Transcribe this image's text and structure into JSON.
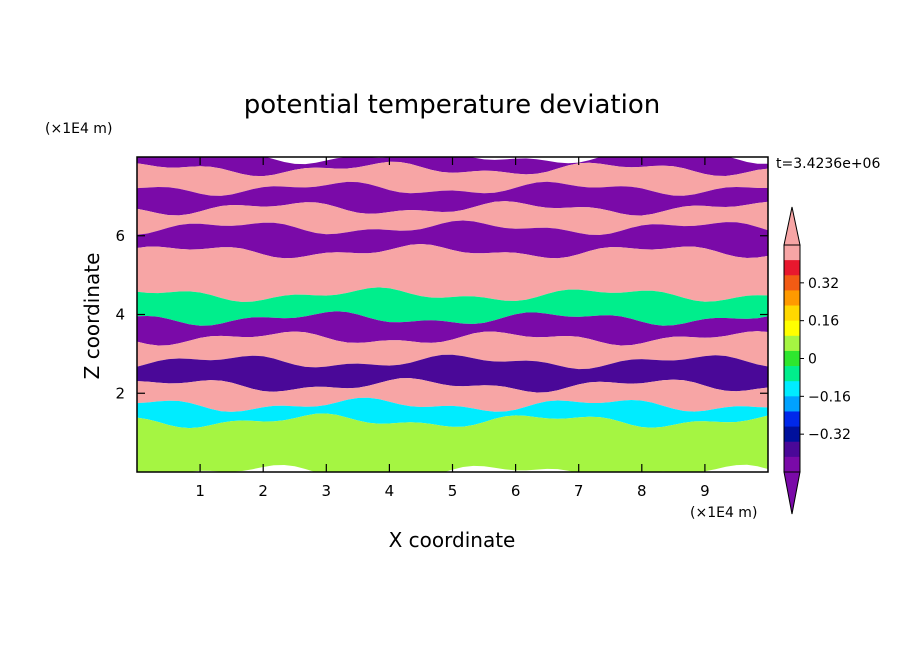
{
  "chart_data": {
    "type": "heatmap",
    "title": "potential temperature deviation",
    "xlabel": "X coordinate",
    "ylabel": "Z coordinate",
    "x_unit": "(×1E4 m)",
    "y_unit": "(×1E4 m)",
    "timestamp": "t=3.4236e+06",
    "xlim": [
      0,
      10
    ],
    "ylim": [
      0,
      8
    ],
    "x_ticks": [
      1,
      2,
      3,
      4,
      5,
      6,
      7,
      8,
      9
    ],
    "y_ticks": [
      2,
      4,
      6
    ],
    "colorbar": {
      "levels": [
        -0.48,
        -0.4,
        -0.32,
        -0.24,
        -0.16,
        -0.08,
        0,
        0.08,
        0.16,
        0.24,
        0.32,
        0.4,
        0.48
      ],
      "tick_labels": [
        "0.32",
        "0.16",
        "0",
        "−0.16",
        "−0.32"
      ],
      "tick_values": [
        0.32,
        0.16,
        0,
        -0.16,
        -0.32
      ],
      "colors_top_to_bottom": [
        "#f7a5a5",
        "#e8182e",
        "#f25b14",
        "#ff9a00",
        "#ffd800",
        "#ffff00",
        "#a5f542",
        "#2ee62e",
        "#00ee8c",
        "#00ecff",
        "#00a2ff",
        "#0028ea",
        "#00109c",
        "#4a0898",
        "#7a0aa8"
      ],
      "over_color": "#f7a5a5",
      "under_color": "#7a0aa8"
    },
    "field_bands": [
      {
        "z_from": 7.7,
        "z_to": 8.0,
        "color": "#7a0aa8"
      },
      {
        "z_from": 7.2,
        "z_to": 7.7,
        "color": "#f7a5a5"
      },
      {
        "z_from": 6.7,
        "z_to": 7.2,
        "color": "#7a0aa8"
      },
      {
        "z_from": 6.2,
        "z_to": 6.7,
        "color": "#f7a5a5"
      },
      {
        "z_from": 5.6,
        "z_to": 6.2,
        "color": "#7a0aa8"
      },
      {
        "z_from": 4.5,
        "z_to": 5.6,
        "color": "#f7a5a5"
      },
      {
        "z_from": 3.9,
        "z_to": 4.5,
        "color": "#00ee8c"
      },
      {
        "z_from": 3.4,
        "z_to": 3.9,
        "color": "#7a0aa8"
      },
      {
        "z_from": 2.8,
        "z_to": 3.4,
        "color": "#f7a5a5"
      },
      {
        "z_from": 2.2,
        "z_to": 2.8,
        "color": "#4a0898"
      },
      {
        "z_from": 1.7,
        "z_to": 2.2,
        "color": "#f7a5a5"
      },
      {
        "z_from": 1.3,
        "z_to": 1.7,
        "color": "#00ecff"
      },
      {
        "z_from": 0.0,
        "z_to": 1.3,
        "color": "#a5f542"
      }
    ]
  }
}
